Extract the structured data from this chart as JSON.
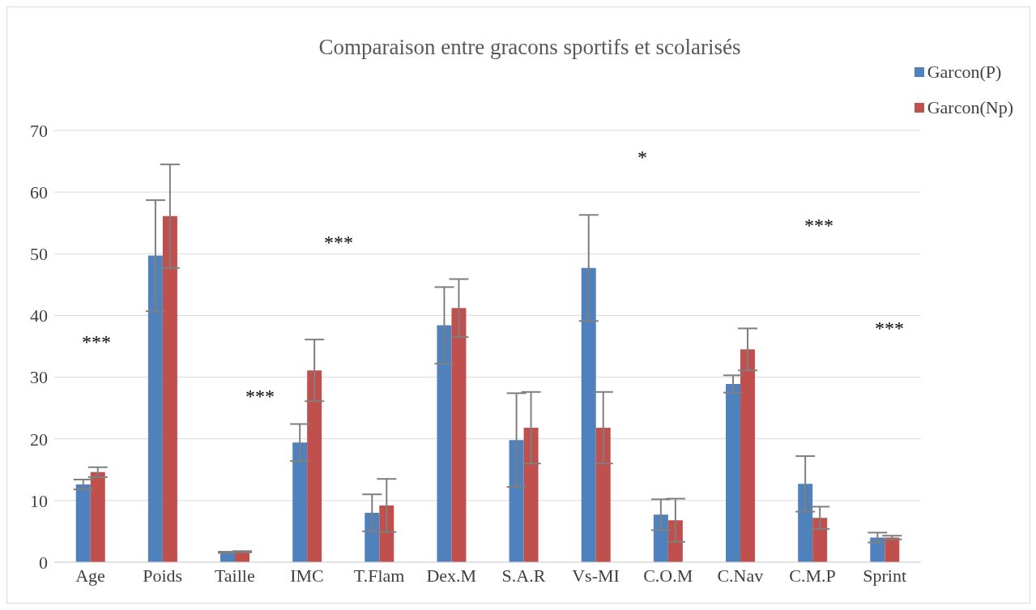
{
  "chart_data": {
    "type": "bar",
    "title": "Comparaison entre gracons sportifs et scolarisés",
    "categories": [
      "Age",
      "Poids",
      "Taille",
      "IMC",
      "T.Flam",
      "Dex.M",
      "S.A.R",
      "Vs-MI",
      "C.O.M",
      "C.Nav",
      "C.M.P",
      "Sprint"
    ],
    "series": [
      {
        "name": "Garcon(P)",
        "color": "#4f81bd",
        "values": [
          12.6,
          49.7,
          1.6,
          19.4,
          8.0,
          38.4,
          19.8,
          47.7,
          7.7,
          28.9,
          12.7,
          4.0
        ],
        "errors": [
          0.8,
          9.0,
          0.1,
          3.0,
          3.0,
          6.2,
          7.6,
          8.6,
          2.5,
          1.4,
          4.5,
          0.8
        ]
      },
      {
        "name": "Garcon(Np)",
        "color": "#c0504d",
        "values": [
          14.6,
          56.1,
          1.7,
          31.1,
          9.2,
          41.2,
          21.8,
          21.8,
          6.8,
          34.5,
          7.2,
          4.0
        ],
        "errors": [
          0.8,
          8.4,
          0.1,
          5.0,
          4.3,
          4.7,
          5.8,
          5.8,
          3.5,
          3.4,
          1.8,
          0.3
        ]
      }
    ],
    "ylim": [
      0,
      70
    ],
    "yticks": [
      0,
      10,
      20,
      30,
      40,
      50,
      60,
      70
    ],
    "grid": "y",
    "legend": "top right",
    "annotations": [
      "***",
      "***",
      "***",
      "*",
      "***",
      "***"
    ]
  }
}
